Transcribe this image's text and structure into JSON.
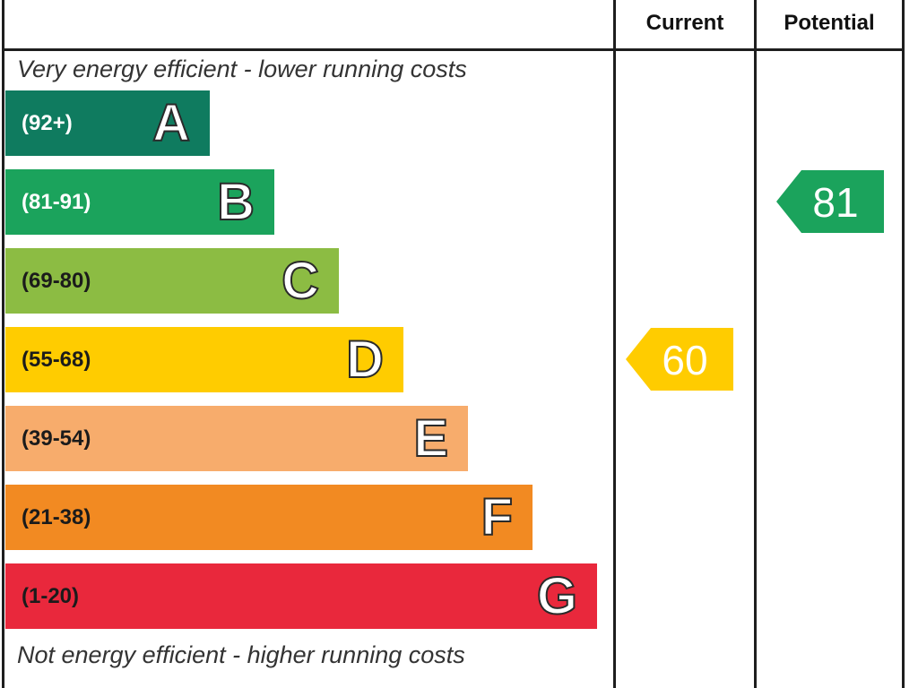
{
  "chart_data": {
    "type": "bar",
    "columns": {
      "current": "Current",
      "potential": "Potential"
    },
    "captions": {
      "top": "Very energy efficient - lower running costs",
      "bottom": "Not energy efficient - higher running costs"
    },
    "bands": [
      {
        "letter": "A",
        "range": "(92+)",
        "color": "#0f7b5f",
        "range_color": "#ffffff"
      },
      {
        "letter": "B",
        "range": "(81-91)",
        "color": "#1ba35c",
        "range_color": "#ffffff"
      },
      {
        "letter": "C",
        "range": "(69-80)",
        "color": "#8cbc43",
        "range_color": "#1b1b1b"
      },
      {
        "letter": "D",
        "range": "(55-68)",
        "color": "#ffcc00",
        "range_color": "#1b1b1b"
      },
      {
        "letter": "E",
        "range": "(39-54)",
        "color": "#f7ac6c",
        "range_color": "#1b1b1b"
      },
      {
        "letter": "F",
        "range": "(21-38)",
        "color": "#f28a22",
        "range_color": "#1b1b1b"
      },
      {
        "letter": "G",
        "range": "(1-20)",
        "color": "#e9283c",
        "range_color": "#1b1b1b"
      }
    ],
    "current": {
      "value": 60,
      "band": "D",
      "color": "#ffcc00"
    },
    "potential": {
      "value": 81,
      "band": "B",
      "color": "#1ba35c"
    }
  }
}
